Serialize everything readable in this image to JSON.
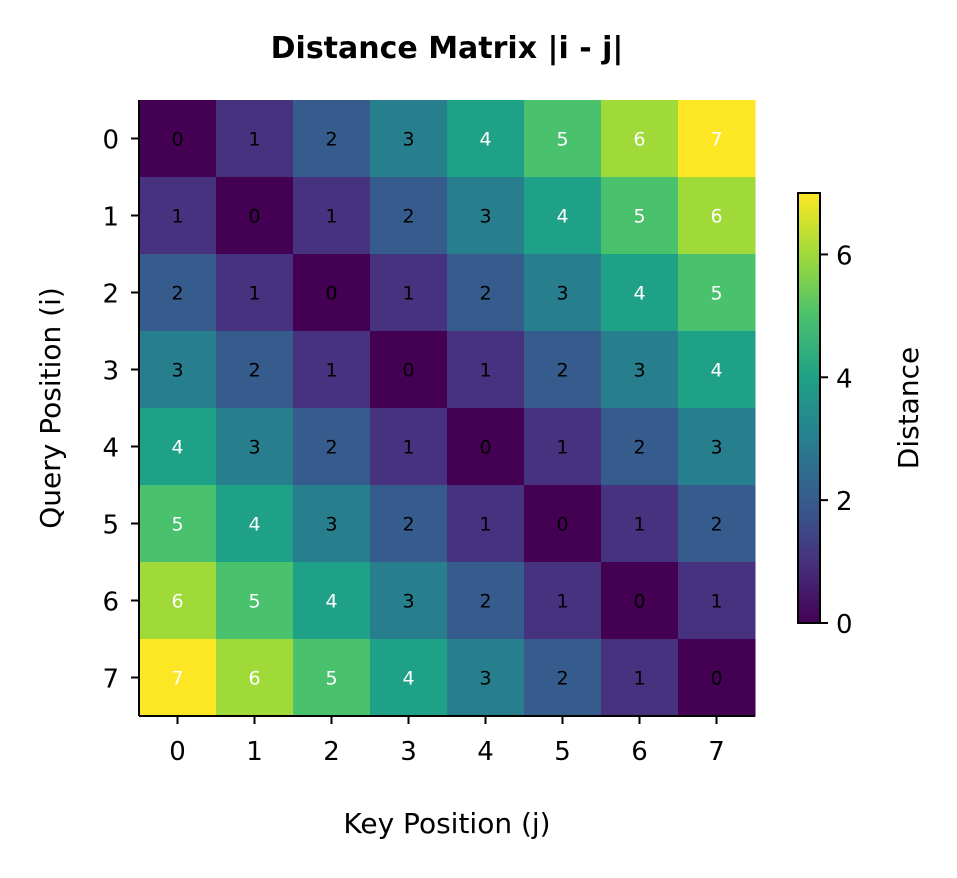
{
  "chart_data": {
    "type": "heatmap",
    "title": "Distance Matrix |i - j|",
    "xlabel": "Key Position (j)",
    "ylabel": "Query Position (i)",
    "x_ticks": [
      "0",
      "1",
      "2",
      "3",
      "4",
      "5",
      "6",
      "7"
    ],
    "y_ticks": [
      "0",
      "1",
      "2",
      "3",
      "4",
      "5",
      "6",
      "7"
    ],
    "values": [
      [
        0,
        1,
        2,
        3,
        4,
        5,
        6,
        7
      ],
      [
        1,
        0,
        1,
        2,
        3,
        4,
        5,
        6
      ],
      [
        2,
        1,
        0,
        1,
        2,
        3,
        4,
        5
      ],
      [
        3,
        2,
        1,
        0,
        1,
        2,
        3,
        4
      ],
      [
        4,
        3,
        2,
        1,
        0,
        1,
        2,
        3
      ],
      [
        5,
        4,
        3,
        2,
        1,
        0,
        1,
        2
      ],
      [
        6,
        5,
        4,
        3,
        2,
        1,
        0,
        1
      ],
      [
        7,
        6,
        5,
        4,
        3,
        2,
        1,
        0
      ]
    ],
    "colormap": "viridis",
    "vmin": 0,
    "vmax": 7,
    "colorbar": {
      "label": "Distance",
      "ticks": [
        "0",
        "2",
        "4",
        "6"
      ]
    },
    "colors": [
      "#440154",
      "#46327e",
      "#365c8d",
      "#277f8e",
      "#1fa187",
      "#4ac16d",
      "#a0da39",
      "#fde725"
    ],
    "annotation_colors": {
      "dark": "#000000",
      "light": "#ffffff"
    }
  }
}
